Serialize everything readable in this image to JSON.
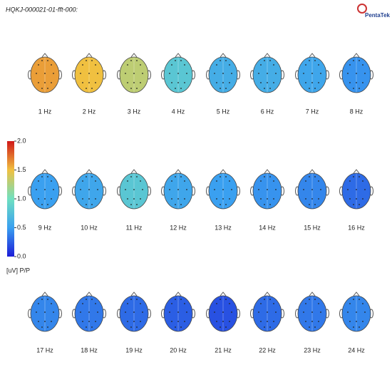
{
  "title": "HQKJ-000021-01-fft-000:",
  "logo": "PentaTek",
  "chart_data": {
    "type": "topomap",
    "categories": [
      "1 Hz",
      "2 Hz",
      "3 Hz",
      "4 Hz",
      "5 Hz",
      "6 Hz",
      "7 Hz",
      "8 Hz",
      "9 Hz",
      "10 Hz",
      "11 Hz",
      "12 Hz",
      "13 Hz",
      "14 Hz",
      "15 Hz",
      "16 Hz",
      "17 Hz",
      "18 Hz",
      "19 Hz",
      "20 Hz",
      "21 Hz",
      "22 Hz",
      "23 Hz",
      "24 Hz"
    ],
    "values": [
      1.6,
      1.5,
      1.3,
      0.8,
      0.6,
      0.6,
      0.55,
      0.45,
      0.5,
      0.55,
      0.8,
      0.55,
      0.5,
      0.45,
      0.4,
      0.3,
      0.4,
      0.35,
      0.3,
      0.25,
      0.2,
      0.3,
      0.35,
      0.4
    ],
    "clim": [
      0,
      2
    ],
    "cticks": [
      {
        "value": 0,
        "label": "0.0"
      },
      {
        "value": 0.5,
        "label": "0.5"
      },
      {
        "value": 1,
        "label": "1.0"
      },
      {
        "value": 1.5,
        "label": "1.5"
      },
      {
        "value": 2,
        "label": "2.0"
      }
    ],
    "unit_label": "[uV] P/P"
  }
}
